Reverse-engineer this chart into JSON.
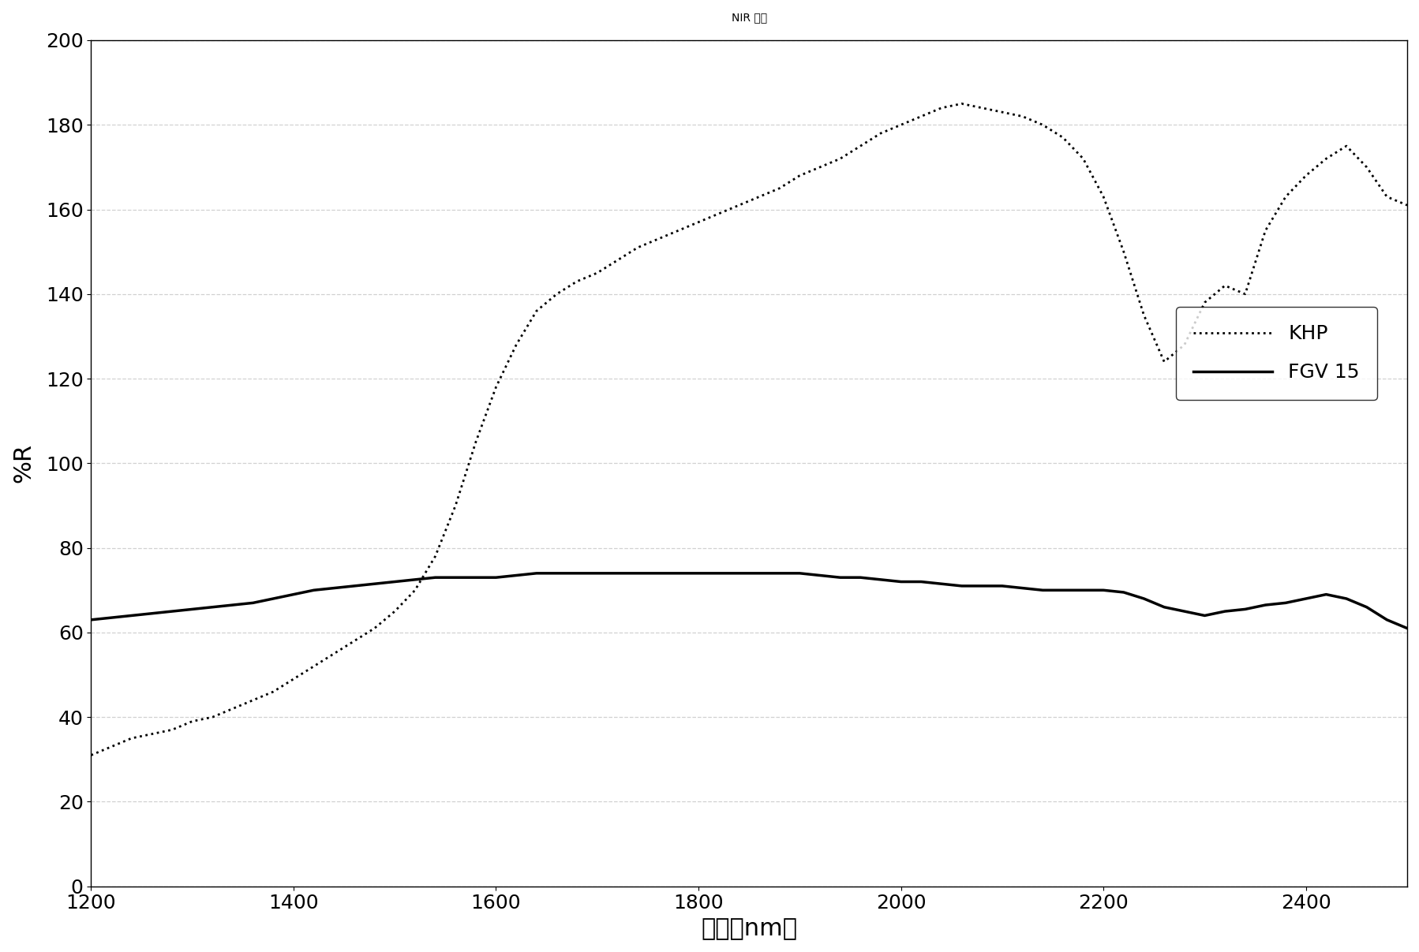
{
  "title": "NIR 光谱",
  "xlabel": "波长（nm）",
  "ylabel": "%R",
  "xlim": [
    1200,
    2500
  ],
  "ylim": [
    0,
    200
  ],
  "yticks": [
    0,
    20,
    40,
    60,
    80,
    100,
    120,
    140,
    160,
    180,
    200
  ],
  "xticks": [
    1200,
    1400,
    1600,
    1800,
    2000,
    2200,
    2400
  ],
  "legend": [
    {
      "label": "KHP",
      "linestyle": "dotted",
      "color": "#000000",
      "linewidth": 2.0
    },
    {
      "label": "FGV 15",
      "linestyle": "solid",
      "color": "#000000",
      "linewidth": 2.5
    }
  ],
  "KHP_x": [
    1200,
    1220,
    1240,
    1260,
    1280,
    1300,
    1320,
    1340,
    1360,
    1380,
    1400,
    1420,
    1440,
    1460,
    1480,
    1500,
    1520,
    1540,
    1560,
    1580,
    1600,
    1620,
    1640,
    1660,
    1680,
    1700,
    1720,
    1740,
    1760,
    1780,
    1800,
    1820,
    1840,
    1860,
    1880,
    1900,
    1920,
    1940,
    1960,
    1980,
    2000,
    2020,
    2040,
    2060,
    2080,
    2100,
    2120,
    2140,
    2160,
    2180,
    2200,
    2220,
    2240,
    2260,
    2280,
    2300,
    2320,
    2340,
    2360,
    2380,
    2400,
    2420,
    2440,
    2460,
    2480,
    2500
  ],
  "KHP_y": [
    31,
    33,
    35,
    36,
    37,
    39,
    40,
    42,
    44,
    46,
    49,
    52,
    55,
    58,
    61,
    65,
    70,
    78,
    90,
    105,
    118,
    128,
    136,
    140,
    143,
    145,
    148,
    151,
    153,
    155,
    157,
    159,
    161,
    163,
    165,
    168,
    170,
    172,
    175,
    178,
    180,
    182,
    184,
    185,
    184,
    183,
    182,
    180,
    177,
    172,
    163,
    150,
    135,
    124,
    128,
    138,
    142,
    140,
    155,
    163,
    168,
    172,
    175,
    170,
    163,
    161
  ],
  "FGV15_x": [
    1200,
    1220,
    1240,
    1260,
    1280,
    1300,
    1320,
    1340,
    1360,
    1380,
    1400,
    1420,
    1440,
    1460,
    1480,
    1500,
    1520,
    1540,
    1560,
    1580,
    1600,
    1620,
    1640,
    1660,
    1680,
    1700,
    1720,
    1740,
    1760,
    1780,
    1800,
    1820,
    1840,
    1860,
    1880,
    1900,
    1920,
    1940,
    1960,
    1980,
    2000,
    2020,
    2040,
    2060,
    2080,
    2100,
    2120,
    2140,
    2160,
    2180,
    2200,
    2220,
    2240,
    2260,
    2280,
    2300,
    2320,
    2340,
    2360,
    2380,
    2400,
    2420,
    2440,
    2460,
    2480,
    2500
  ],
  "FGV15_y": [
    63,
    63.5,
    64,
    64.5,
    65,
    65.5,
    66,
    66.5,
    67,
    68,
    69,
    70,
    70.5,
    71,
    71.5,
    72,
    72.5,
    73,
    73,
    73,
    73,
    73.5,
    74,
    74,
    74,
    74,
    74,
    74,
    74,
    74,
    74,
    74,
    74,
    74,
    74,
    74,
    73.5,
    73,
    73,
    72.5,
    72,
    72,
    71.5,
    71,
    71,
    71,
    70.5,
    70,
    70,
    70,
    70,
    69.5,
    68,
    66,
    65,
    64,
    65,
    65.5,
    66.5,
    67,
    68,
    69,
    68,
    66,
    63,
    61
  ]
}
